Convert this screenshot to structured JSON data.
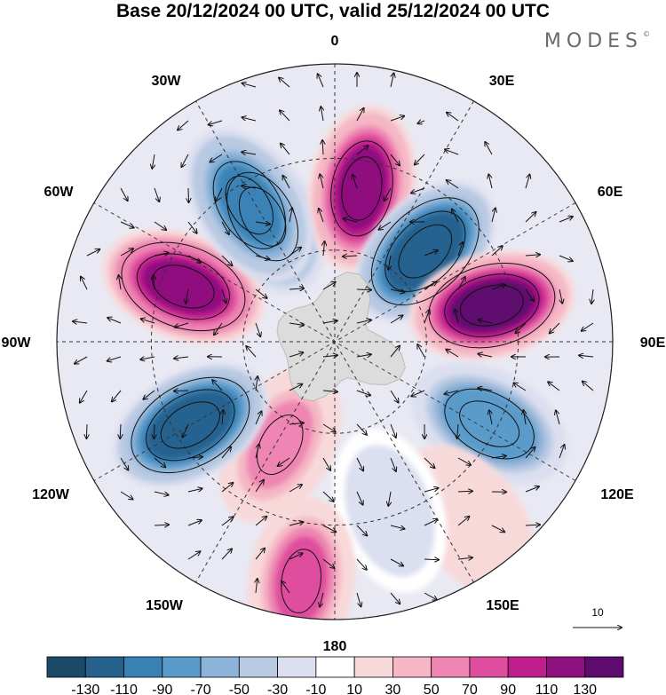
{
  "title": "Base 20/12/2024 00 UTC, valid 25/12/2024 00 UTC",
  "logo": "MODES",
  "logo_mark": "©",
  "projection": "south-polar-stereographic",
  "longitude_labels": {
    "top": "0",
    "top_right": "30E",
    "right_upper": "60E",
    "right": "90E",
    "right_lower": "120E",
    "bottom_right": "150E",
    "bottom": "180",
    "bottom_left": "150W",
    "left_lower": "120W",
    "left": "90W",
    "left_upper": "60W",
    "top_left": "30W"
  },
  "vector_reference": {
    "label": "10"
  },
  "colorbar": {
    "ticks": [
      "-130",
      "-110",
      "-90",
      "-70",
      "-50",
      "-30",
      "-10",
      "10",
      "30",
      "50",
      "70",
      "90",
      "110",
      "130"
    ],
    "colors": [
      "#1b4a68",
      "#27628f",
      "#3a82b6",
      "#5a9bca",
      "#8eb3d8",
      "#b8c9e2",
      "#dbdff0",
      "#ffffff",
      "#f8d9da",
      "#f5b7c5",
      "#ee85b2",
      "#df4d9e",
      "#bf1e8c",
      "#8f117f",
      "#5e0b6e"
    ]
  },
  "colors": {
    "continent": "#dcdcdc",
    "background_field": "#e9e9f3",
    "border": "#222222"
  },
  "anomaly_centers": [
    {
      "label": "trough",
      "value": -80,
      "bearing_deg": -30,
      "radius_frac": 0.52
    },
    {
      "label": "ridge",
      "value": 110,
      "bearing_deg": 10,
      "radius_frac": 0.56
    },
    {
      "label": "trough",
      "value": -130,
      "bearing_deg": 45,
      "radius_frac": 0.46
    },
    {
      "label": "ridge",
      "value": 130,
      "bearing_deg": 77,
      "radius_frac": 0.58
    },
    {
      "label": "trough",
      "value": -90,
      "bearing_deg": 118,
      "radius_frac": 0.63
    },
    {
      "label": "ridge",
      "value": 20,
      "bearing_deg": 143,
      "radius_frac": 0.8
    },
    {
      "label": "trough",
      "value": -30,
      "bearing_deg": 162,
      "radius_frac": 0.64
    },
    {
      "label": "ridge",
      "value": 70,
      "bearing_deg": 188,
      "radius_frac": 0.87
    },
    {
      "label": "ridge",
      "value": 50,
      "bearing_deg": 208,
      "radius_frac": 0.42
    },
    {
      "label": "trough",
      "value": -130,
      "bearing_deg": 240,
      "radius_frac": 0.6
    },
    {
      "label": "ridge",
      "value": 120,
      "bearing_deg": 290,
      "radius_frac": 0.58
    },
    {
      "label": "trough",
      "value": -100,
      "bearing_deg": 328,
      "radius_frac": 0.58
    }
  ]
}
